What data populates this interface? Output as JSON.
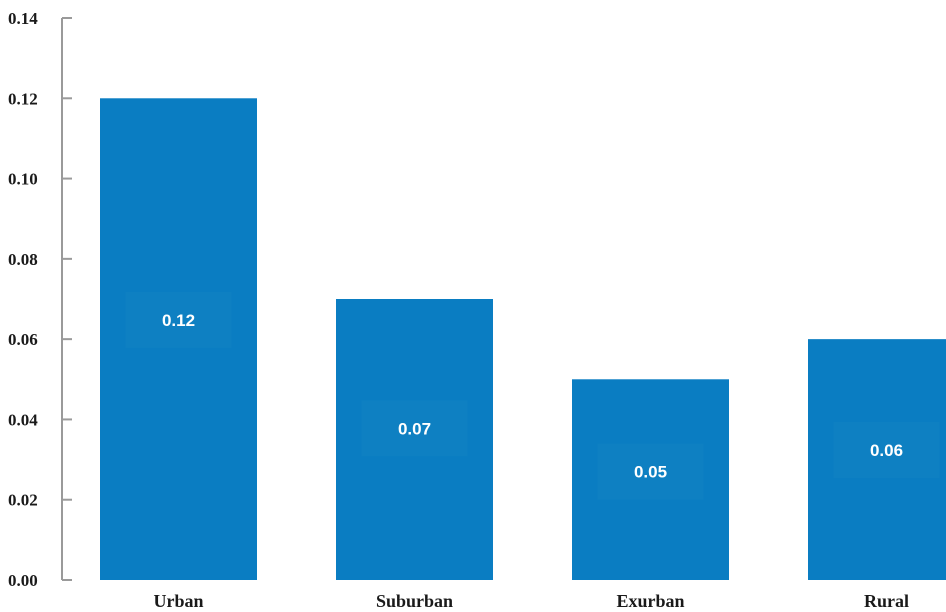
{
  "chart_data": {
    "type": "bar",
    "categories": [
      "Urban",
      "Suburban",
      "Exurban",
      "Rural"
    ],
    "values": [
      0.12,
      0.07,
      0.05,
      0.06
    ],
    "data_labels": [
      "0.12",
      "0.07",
      "0.05",
      "0.06"
    ],
    "ylim": [
      0,
      0.14
    ],
    "yticks": [
      0,
      0.02,
      0.04,
      0.06,
      0.08,
      0.1,
      0.12,
      0.14
    ],
    "ytick_labels": [
      "0.00",
      "0.02",
      "0.04",
      "0.06",
      "0.08",
      "0.10",
      "0.12",
      "0.14"
    ],
    "grid": false,
    "legend": "none",
    "colors": {
      "bar": "#0a7dc2",
      "label_box": "#0e80c2",
      "axis": "#9a9a9a"
    }
  }
}
